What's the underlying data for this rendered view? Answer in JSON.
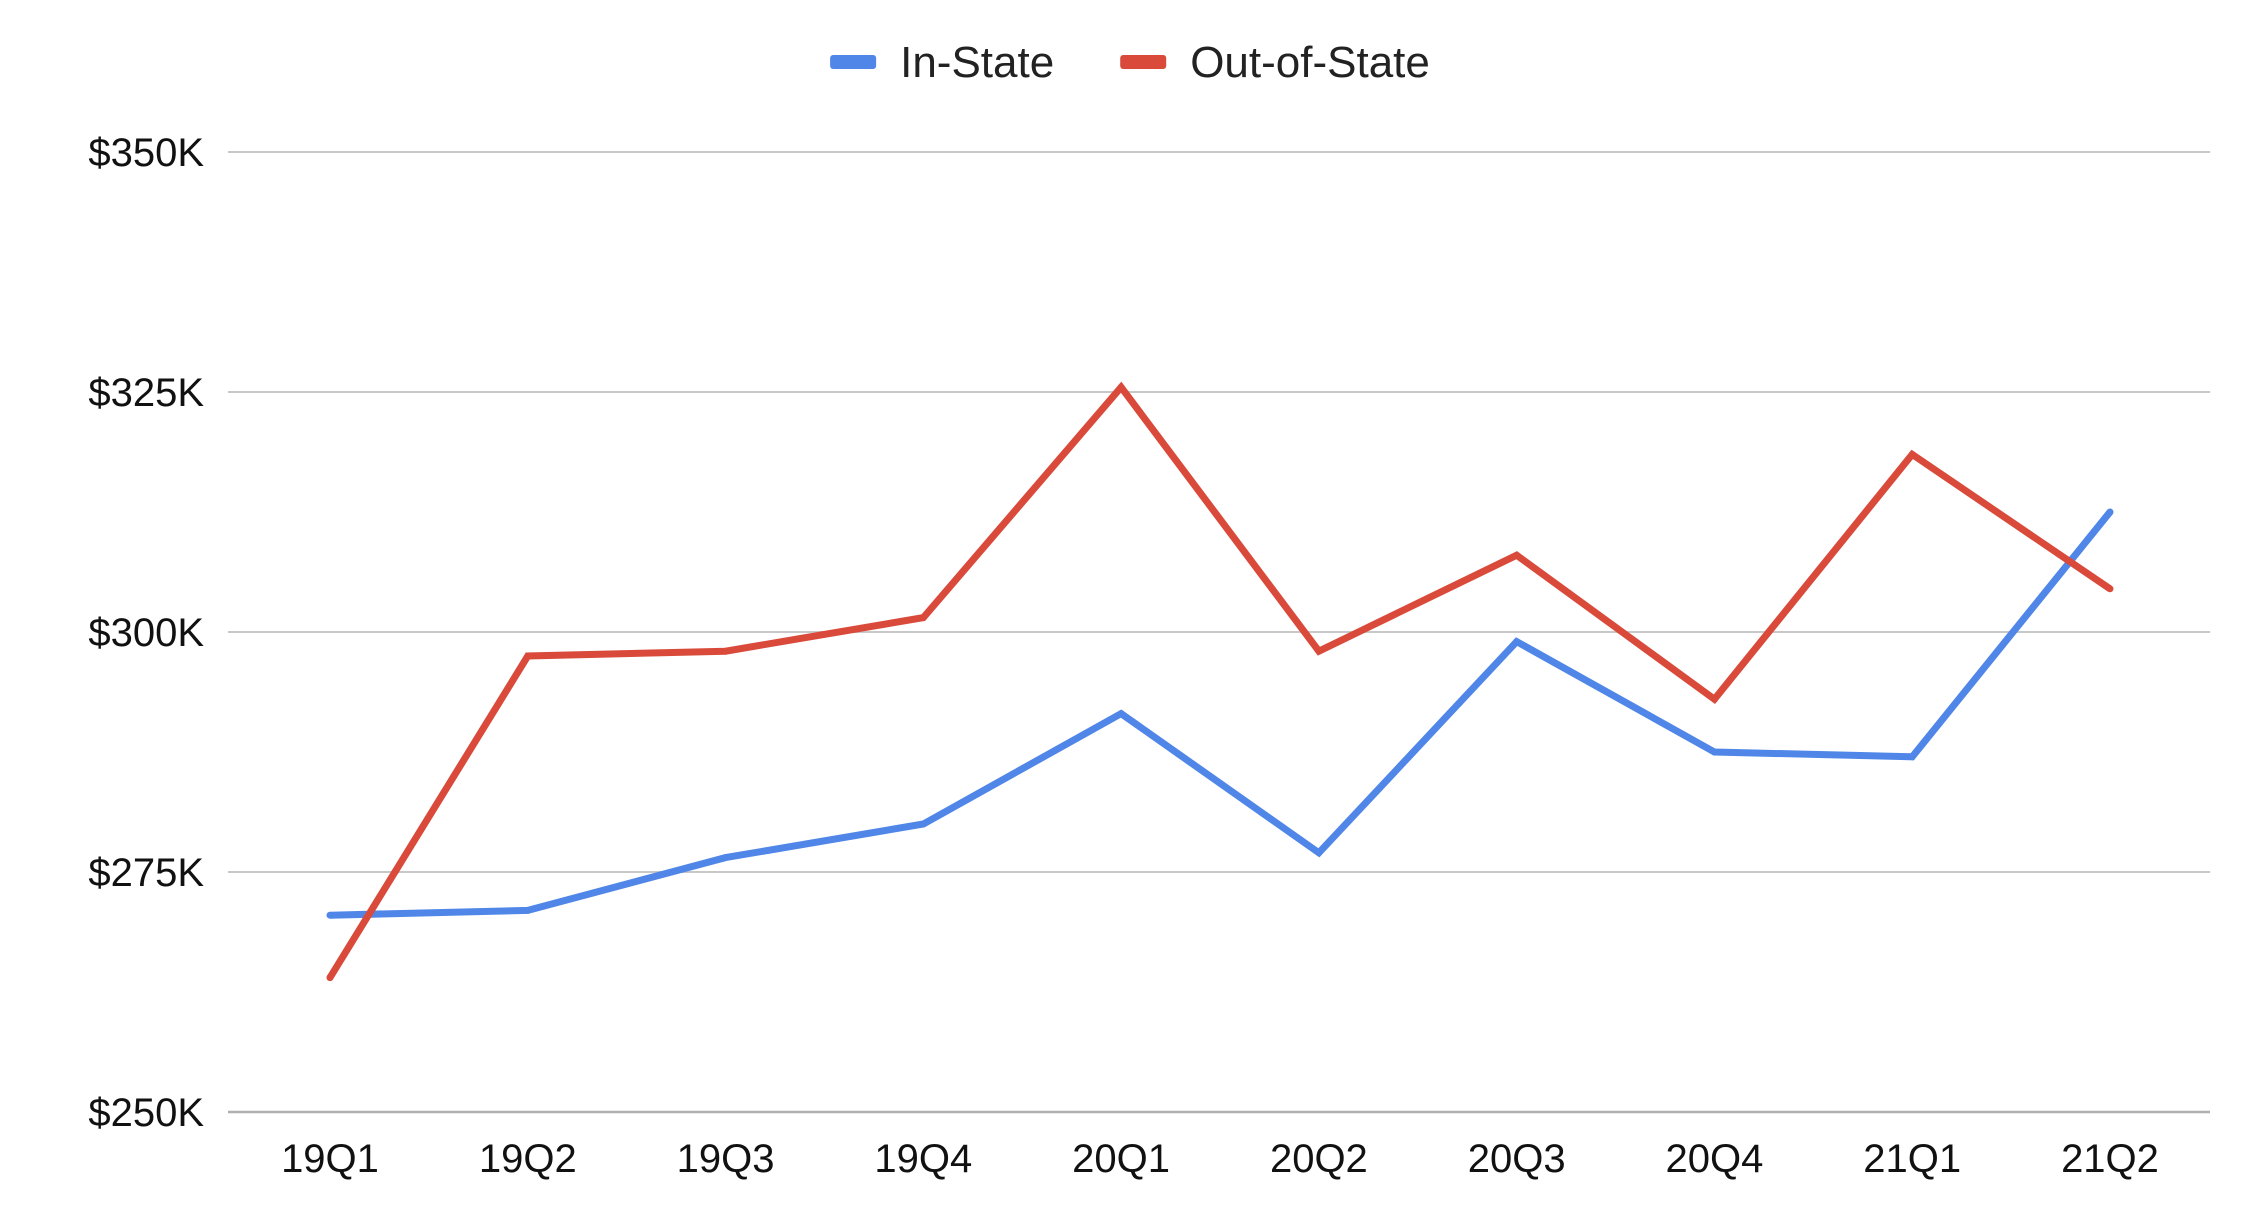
{
  "chart_data": {
    "type": "line",
    "categories": [
      "19Q1",
      "19Q2",
      "19Q3",
      "19Q4",
      "20Q1",
      "20Q2",
      "20Q3",
      "20Q4",
      "21Q1",
      "21Q2"
    ],
    "series": [
      {
        "name": "In-State",
        "color": "#4f86e8",
        "values": [
          270500,
          271000,
          276500,
          280000,
          291500,
          277000,
          299000,
          287500,
          287000,
          312500
        ]
      },
      {
        "name": "Out-of-State",
        "color": "#d94a3a",
        "values": [
          264000,
          297500,
          298000,
          301500,
          325500,
          298000,
          308000,
          293000,
          318500,
          304500
        ]
      }
    ],
    "yticks": [
      {
        "value": 250000,
        "label": "$250K"
      },
      {
        "value": 275000,
        "label": "$275K"
      },
      {
        "value": 300000,
        "label": "$300K"
      },
      {
        "value": 325000,
        "label": "$325K"
      },
      {
        "value": 350000,
        "label": "$350K"
      }
    ],
    "ylim": [
      250000,
      350000
    ],
    "title": "",
    "xlabel": "",
    "ylabel": "",
    "grid": true,
    "legend_position": "top-center"
  }
}
